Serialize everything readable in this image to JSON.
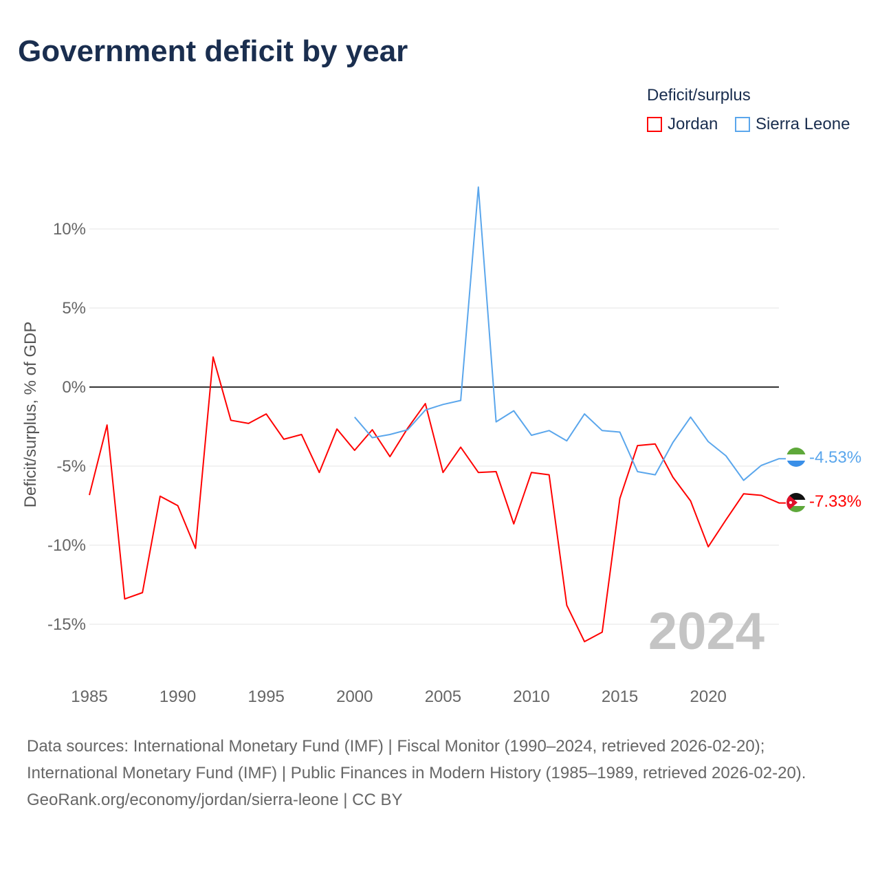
{
  "title": "Government deficit by year",
  "legend": {
    "title": "Deficit/surplus",
    "items": [
      {
        "label": "Jordan",
        "color": "#ff0000"
      },
      {
        "label": "Sierra Leone",
        "color": "#5aa6ec"
      }
    ]
  },
  "footer": {
    "sources": "Data sources: International Monetary Fund (IMF) | Fiscal Monitor (1990–2024, retrieved 2026-02-20); International Monetary Fund (IMF) | Public Finances in Modern History (1985–1989, retrieved 2026-02-20).",
    "credit": "GeoRank.org/economy/jordan/sierra-leone | CC BY"
  },
  "chart_data": {
    "type": "line",
    "title": "Government deficit by year",
    "ylabel": "Deficit/surplus, % of GDP",
    "xlabel": "",
    "xlim": [
      1985,
      2024
    ],
    "ylim": [
      -18,
      14
    ],
    "yticks": [
      -15,
      -10,
      -5,
      0,
      5,
      10
    ],
    "ytick_labels": [
      "-15%",
      "-10%",
      "-5%",
      "0%",
      "5%",
      "10%"
    ],
    "xticks": [
      1985,
      1990,
      1995,
      2000,
      2005,
      2010,
      2015,
      2020
    ],
    "xtick_labels": [
      "1985",
      "1990",
      "1995",
      "2000",
      "2005",
      "2010",
      "2015",
      "2020"
    ],
    "year_watermark": "2024",
    "legend_position": "top-right",
    "series": [
      {
        "name": "Jordan",
        "color": "#ff0000",
        "end_label": "-7.33%",
        "start_year": 1985,
        "values": [
          -6.83,
          -2.4,
          -13.4,
          -13.0,
          -6.9,
          -7.5,
          -10.2,
          1.9,
          -2.1,
          -2.3,
          -1.7,
          -3.3,
          -3.0,
          -5.4,
          -2.65,
          -4.0,
          -2.7,
          -4.4,
          -2.6,
          -1.05,
          -5.4,
          -3.8,
          -5.4,
          -5.35,
          -8.65,
          -5.4,
          -5.55,
          -13.8,
          -16.1,
          -15.5,
          -7.05,
          -3.7,
          -3.6,
          -5.7,
          -7.2,
          -10.1,
          -8.4,
          -6.75,
          -6.85,
          -7.33
        ]
      },
      {
        "name": "Sierra Leone",
        "color": "#5aa6ec",
        "end_label": "-4.53%",
        "start_year": 2000,
        "values": [
          -1.9,
          -3.2,
          -3.0,
          -2.7,
          -1.45,
          -1.1,
          -0.85,
          12.65,
          -2.2,
          -1.5,
          -3.05,
          -2.75,
          -3.4,
          -1.7,
          -2.75,
          -2.85,
          -5.35,
          -5.55,
          -3.5,
          -1.9,
          -3.45,
          -4.35,
          -5.9,
          -4.95,
          -4.53
        ]
      }
    ]
  }
}
